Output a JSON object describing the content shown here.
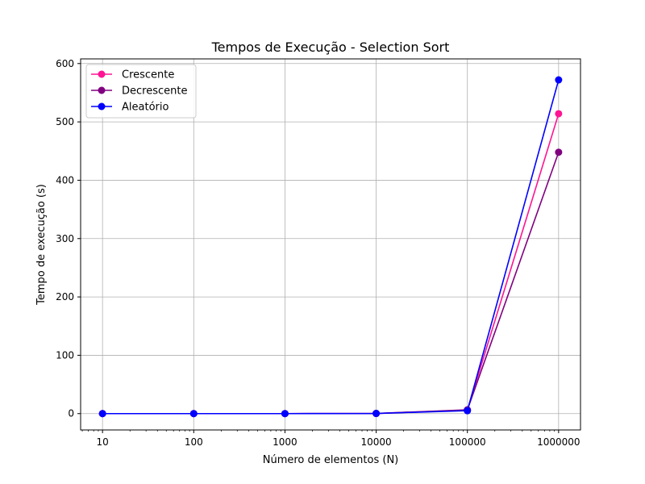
{
  "chart_data": {
    "type": "line",
    "title": "Tempos de Execução - Selection Sort",
    "xlabel": "Número de elementos (N)",
    "ylabel": "Tempo de execução (s)",
    "x_scale": "log",
    "x": [
      10,
      100,
      1000,
      10000,
      100000,
      1000000
    ],
    "x_tick_labels": [
      "10",
      "100",
      "1000",
      "10000",
      "100000",
      "1000000"
    ],
    "y_ticks": [
      0,
      100,
      200,
      300,
      400,
      500,
      600
    ],
    "ylim": [
      -28,
      608
    ],
    "grid": true,
    "legend_position": "top-left",
    "series": [
      {
        "name": "Crescente",
        "color": "#ff1493",
        "values": [
          0,
          0,
          0,
          0.3,
          6.0,
          514
        ]
      },
      {
        "name": "Decrescente",
        "color": "#800080",
        "values": [
          0,
          0,
          0,
          0.3,
          6.5,
          448
        ]
      },
      {
        "name": "Aleatório",
        "color": "#0000ff",
        "values": [
          0,
          0,
          0,
          0.3,
          5.0,
          572
        ]
      }
    ]
  }
}
